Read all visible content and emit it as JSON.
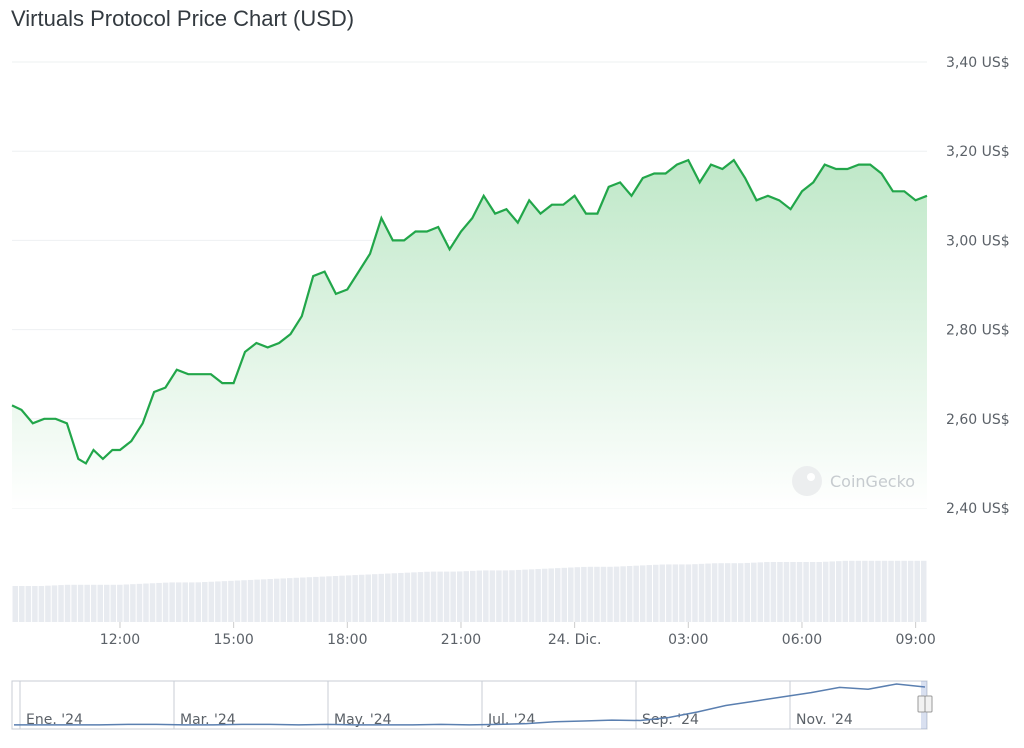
{
  "title": "Virtuals Protocol Price Chart (USD)",
  "watermark": "CoinGecko",
  "colors": {
    "line": "#22a64a",
    "fill_top": "#bfe8c8",
    "fill_bottom": "#ffffff",
    "volume": "#e8ebf0",
    "grid": "#eef0f2",
    "navigator_line": "#5a7fb0",
    "navigator_border": "#c8cdd5"
  },
  "chart_data": [
    {
      "type": "area",
      "title": "Virtuals Protocol Price Chart (USD)",
      "y_ticks": [
        "3,40 US$",
        "3,20 US$",
        "3,00 US$",
        "2,80 US$",
        "2,60 US$",
        "2,40 US$"
      ],
      "y_tick_values": [
        3.4,
        3.2,
        3.0,
        2.8,
        2.6,
        2.4
      ],
      "ylim": [
        2.4,
        3.4
      ],
      "x_ticks": [
        "12:00",
        "15:00",
        "18:00",
        "21:00",
        "24. Dic.",
        "03:00",
        "06:00",
        "09:00"
      ],
      "x_tick_hours": [
        12,
        15,
        18,
        21,
        24,
        27,
        30,
        33
      ],
      "x_range_hours": [
        9.15,
        33.3
      ],
      "grid": true,
      "series": [
        {
          "x_hours": [
            9.15,
            9.4,
            9.7,
            10.0,
            10.3,
            10.6,
            10.9,
            11.1,
            11.3,
            11.55,
            11.8,
            12.0,
            12.3,
            12.6,
            12.9,
            13.2,
            13.5,
            13.8,
            14.1,
            14.4,
            14.7,
            15.0,
            15.3,
            15.6,
            15.9,
            16.2,
            16.5,
            16.8,
            17.1,
            17.4,
            17.7,
            18.0,
            18.3,
            18.6,
            18.9,
            19.2,
            19.5,
            19.8,
            20.1,
            20.4,
            20.7,
            21.0,
            21.3,
            21.6,
            21.9,
            22.2,
            22.5,
            22.8,
            23.1,
            23.4,
            23.7,
            24.0,
            24.3,
            24.6,
            24.9,
            25.2,
            25.5,
            25.8,
            26.1,
            26.4,
            26.7,
            27.0,
            27.3,
            27.6,
            27.9,
            28.2,
            28.5,
            28.8,
            29.1,
            29.4,
            29.7,
            30.0,
            30.3,
            30.6,
            30.9,
            31.2,
            31.5,
            31.8,
            32.1,
            32.4,
            32.7,
            33.0,
            33.3
          ],
          "values": [
            2.63,
            2.62,
            2.59,
            2.6,
            2.6,
            2.59,
            2.51,
            2.5,
            2.53,
            2.51,
            2.53,
            2.53,
            2.55,
            2.59,
            2.66,
            2.67,
            2.71,
            2.7,
            2.7,
            2.7,
            2.68,
            2.68,
            2.75,
            2.77,
            2.76,
            2.77,
            2.79,
            2.83,
            2.92,
            2.93,
            2.88,
            2.89,
            2.93,
            2.97,
            3.05,
            3.0,
            3.0,
            3.02,
            3.02,
            3.03,
            2.98,
            3.02,
            3.05,
            3.1,
            3.06,
            3.07,
            3.04,
            3.09,
            3.06,
            3.08,
            3.08,
            3.1,
            3.06,
            3.06,
            3.12,
            3.13,
            3.1,
            3.14,
            3.15,
            3.15,
            3.17,
            3.18,
            3.13,
            3.17,
            3.16,
            3.18,
            3.14,
            3.09,
            3.1,
            3.09,
            3.07,
            3.11,
            3.13,
            3.17,
            3.16,
            3.16,
            3.17,
            3.17,
            3.15,
            3.11,
            3.11,
            3.09,
            3.1
          ]
        }
      ]
    },
    {
      "type": "bar",
      "series": [
        {
          "values": [
            0.3,
            0.3,
            0.31,
            0.31,
            0.31,
            0.32,
            0.33,
            0.33,
            0.34,
            0.35,
            0.36,
            0.37,
            0.38,
            0.39,
            0.4,
            0.41,
            0.42,
            0.42,
            0.43,
            0.43,
            0.44,
            0.45,
            0.46,
            0.46,
            0.47,
            0.48,
            0.48,
            0.49,
            0.49,
            0.5,
            0.5,
            0.5,
            0.51,
            0.51,
            0.51,
            0.51
          ]
        }
      ]
    },
    {
      "type": "line",
      "x_ticks": [
        "Ene. '24",
        "Mar. '24",
        "May. '24",
        "Jul. '24",
        "Sep. '24",
        "Nov. '24"
      ],
      "series": [
        {
          "values": [
            0.05,
            0.05,
            0.05,
            0.05,
            0.06,
            0.06,
            0.05,
            0.05,
            0.06,
            0.06,
            0.05,
            0.06,
            0.05,
            0.05,
            0.05,
            0.06,
            0.05,
            0.06,
            0.08,
            0.12,
            0.14,
            0.16,
            0.15,
            0.22,
            0.35,
            0.5,
            0.6,
            0.7,
            0.8,
            0.92,
            0.88,
            1.0,
            0.93
          ]
        }
      ]
    }
  ]
}
